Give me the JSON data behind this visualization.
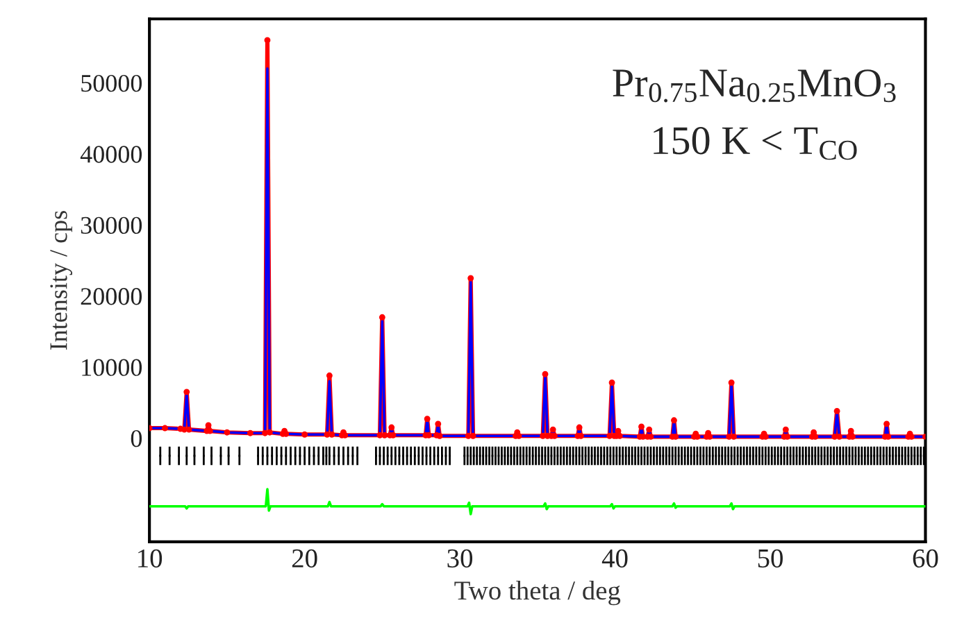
{
  "chart_data": {
    "type": "line",
    "xlabel": "Two theta / deg",
    "ylabel": "Intensity / cps",
    "annotations": [
      "Pr$_{0.75}$Na$_{0.25}$MnO$_{3}$",
      "150 K < T$_{CO}$"
    ],
    "xlim": [
      10,
      60
    ],
    "xticks": [
      10,
      20,
      30,
      40,
      50,
      60
    ],
    "ylim": [
      -14600,
      59000
    ],
    "yticks": [
      0,
      10000,
      20000,
      30000,
      40000,
      50000
    ],
    "grid": false,
    "legend": false,
    "series": [
      {
        "color": "#ff0000",
        "marker": "circle",
        "x": [
          10,
          11,
          12,
          12.25,
          12.4,
          12.55,
          13.7,
          13.8,
          13.9,
          15,
          16.5,
          17.45,
          17.6,
          17.75,
          18.6,
          18.7,
          18.8,
          20,
          21.45,
          21.6,
          21.75,
          22.4,
          22.5,
          22.6,
          24.85,
          25.0,
          25.15,
          25.5,
          25.6,
          25.7,
          27.8,
          27.9,
          28.0,
          28.5,
          28.6,
          28.7,
          30.55,
          30.7,
          30.85,
          33.6,
          33.7,
          33.8,
          35.35,
          35.5,
          35.65,
          35.9,
          36.0,
          36.1,
          37.6,
          37.7,
          37.8,
          39.65,
          39.8,
          39.95,
          40.1,
          40.2,
          40.3,
          41.6,
          41.7,
          41.8,
          42.1,
          42.2,
          42.3,
          43.7,
          43.8,
          43.9,
          45.1,
          45.2,
          45.3,
          45.9,
          46.0,
          46.1,
          47.35,
          47.5,
          47.65,
          49.5,
          49.6,
          49.7,
          50.9,
          51.0,
          51.1,
          52.7,
          52.8,
          52.9,
          54.15,
          54.3,
          54.45,
          55.1,
          55.2,
          55.3,
          57.4,
          57.5,
          57.6,
          58.9,
          59.0,
          59.1,
          60
        ],
        "values": [
          1400,
          1400,
          1300,
          1200,
          6500,
          1200,
          1000,
          1800,
          1000,
          800,
          700,
          700,
          56000,
          800,
          600,
          1000,
          600,
          500,
          500,
          8800,
          500,
          400,
          800,
          400,
          400,
          17000,
          400,
          400,
          1500,
          400,
          400,
          2700,
          400,
          400,
          2000,
          300,
          300,
          22500,
          300,
          300,
          800,
          300,
          300,
          9000,
          300,
          300,
          1200,
          300,
          300,
          1500,
          300,
          300,
          7800,
          300,
          300,
          1000,
          300,
          200,
          1600,
          200,
          200,
          1200,
          200,
          200,
          2500,
          200,
          200,
          600,
          200,
          200,
          700,
          200,
          200,
          7800,
          200,
          200,
          600,
          200,
          200,
          1200,
          200,
          200,
          800,
          200,
          200,
          3800,
          200,
          200,
          1000,
          200,
          200,
          2000,
          200,
          200,
          600,
          200,
          200
        ]
      },
      {
        "color": "#0000ff",
        "marker": "none",
        "x": [
          10,
          11,
          12,
          12.25,
          12.4,
          12.55,
          13.7,
          13.8,
          13.9,
          15,
          16.5,
          17.45,
          17.6,
          17.75,
          18.6,
          18.7,
          18.8,
          20,
          21.45,
          21.6,
          21.75,
          22.4,
          22.5,
          22.6,
          24.85,
          25.0,
          25.15,
          25.5,
          25.6,
          25.7,
          27.8,
          27.9,
          28.0,
          28.5,
          28.6,
          28.7,
          30.55,
          30.7,
          30.85,
          33.6,
          33.7,
          33.8,
          35.35,
          35.5,
          35.65,
          35.9,
          36.0,
          36.1,
          37.6,
          37.7,
          37.8,
          39.65,
          39.8,
          39.95,
          40.1,
          40.2,
          40.3,
          41.6,
          41.7,
          41.8,
          42.1,
          42.2,
          42.3,
          43.7,
          43.8,
          43.9,
          45.1,
          45.2,
          45.3,
          45.9,
          46.0,
          46.1,
          47.35,
          47.5,
          47.65,
          49.5,
          49.6,
          49.7,
          50.9,
          51.0,
          51.1,
          52.7,
          52.8,
          52.9,
          54.15,
          54.3,
          54.45,
          55.1,
          55.2,
          55.3,
          57.4,
          57.5,
          57.6,
          58.9,
          59.0,
          59.1,
          60
        ],
        "values": [
          1400,
          1400,
          1300,
          1200,
          6300,
          1200,
          1000,
          1700,
          1000,
          800,
          700,
          700,
          52000,
          800,
          600,
          1000,
          600,
          500,
          500,
          8000,
          500,
          400,
          800,
          400,
          400,
          16500,
          400,
          400,
          1500,
          400,
          400,
          2600,
          400,
          400,
          1900,
          300,
          300,
          22000,
          300,
          300,
          800,
          300,
          300,
          8800,
          300,
          300,
          1200,
          300,
          300,
          1500,
          300,
          300,
          7500,
          300,
          300,
          1000,
          300,
          200,
          1600,
          200,
          200,
          1200,
          200,
          200,
          2400,
          200,
          200,
          600,
          200,
          200,
          700,
          200,
          200,
          7600,
          200,
          200,
          600,
          200,
          200,
          1200,
          200,
          200,
          800,
          200,
          200,
          3600,
          200,
          200,
          1000,
          200,
          200,
          1900,
          200,
          200,
          600,
          200,
          200
        ]
      },
      {
        "type": "scatter",
        "color": "#000000",
        "marker": "square",
        "x": [
          10.7,
          11.3,
          11.9,
          12.4,
          12.9,
          13.5,
          14.0,
          14.6,
          15.1,
          15.8,
          17.0,
          17.3,
          17.6,
          17.9,
          18.2,
          18.5,
          18.8,
          19.1,
          19.4,
          19.7,
          20.0,
          20.3,
          20.6,
          20.9,
          21.2,
          21.4,
          21.6,
          21.9,
          22.2,
          22.5,
          22.8,
          23.1,
          23.4,
          24.6,
          24.85,
          25.1,
          25.35,
          25.6,
          25.85,
          26.1,
          26.35,
          26.6,
          26.85,
          27.1,
          27.35,
          27.6,
          27.85,
          28.1,
          28.35,
          28.6,
          28.85,
          29.1,
          29.35,
          30.3,
          30.5,
          30.7,
          30.9,
          31.1,
          31.3,
          31.5,
          31.7,
          31.9,
          32.1,
          32.3,
          32.5,
          32.7,
          32.9,
          33.1,
          33.3,
          33.5,
          33.7,
          33.9,
          34.1,
          34.3,
          34.5,
          34.7,
          34.9,
          35.1,
          35.3,
          35.5,
          35.7,
          35.9,
          36.1,
          36.3,
          36.5,
          36.7,
          36.9,
          37.1,
          37.3,
          37.5,
          37.7,
          37.9,
          38.1,
          38.3,
          38.5,
          38.7,
          38.9,
          39.1,
          39.3,
          39.5,
          39.7,
          39.9,
          40.1,
          40.3,
          40.5,
          40.7,
          40.9,
          41.1,
          41.3,
          41.5,
          41.7,
          41.9,
          42.1,
          42.3,
          42.5,
          42.7,
          42.9,
          43.1,
          43.3,
          43.5,
          43.7,
          43.9,
          44.1,
          44.3,
          44.5,
          44.7,
          44.9,
          45.1,
          45.3,
          45.5,
          45.7,
          45.9,
          46.1,
          46.3,
          46.5,
          46.7,
          46.9,
          47.1,
          47.3,
          47.5,
          47.7,
          47.9,
          48.1,
          48.3,
          48.5,
          48.7,
          48.9,
          49.1,
          49.3,
          49.5,
          49.7,
          49.9,
          50.1,
          50.3,
          50.5,
          50.7,
          50.9,
          51.1,
          51.3,
          51.5,
          51.7,
          51.9,
          52.1,
          52.3,
          52.5,
          52.7,
          52.9,
          53.1,
          53.3,
          53.5,
          53.7,
          53.9,
          54.1,
          54.3,
          54.5,
          54.7,
          54.9,
          55.1,
          55.3,
          55.5,
          55.7,
          55.9,
          56.1,
          56.3,
          56.5,
          56.7,
          56.9,
          57.1,
          57.3,
          57.5,
          57.7,
          57.9,
          58.1,
          58.3,
          58.5,
          58.7,
          58.9,
          59.1,
          59.3,
          59.5,
          59.7,
          59.9
        ],
        "values": [
          -2500,
          -2500,
          -2500,
          -2500,
          -2500,
          -2500,
          -2500,
          -2500,
          -2500,
          -2500,
          -2500,
          -2500,
          -2500,
          -2500,
          -2500,
          -2500,
          -2500,
          -2500,
          -2500,
          -2500,
          -2500,
          -2500,
          -2500,
          -2500,
          -2500,
          -2500,
          -2500,
          -2500,
          -2500,
          -2500,
          -2500,
          -2500,
          -2500,
          -2500,
          -2500,
          -2500,
          -2500,
          -2500,
          -2500,
          -2500,
          -2500,
          -2500,
          -2500,
          -2500,
          -2500,
          -2500,
          -2500,
          -2500,
          -2500,
          -2500,
          -2500,
          -2500,
          -2500,
          -2500,
          -2500,
          -2500,
          -2500,
          -2500,
          -2500,
          -2500,
          -2500,
          -2500,
          -2500,
          -2500,
          -2500,
          -2500,
          -2500,
          -2500,
          -2500,
          -2500,
          -2500,
          -2500,
          -2500,
          -2500,
          -2500,
          -2500,
          -2500,
          -2500,
          -2500,
          -2500,
          -2500,
          -2500,
          -2500,
          -2500,
          -2500,
          -2500,
          -2500,
          -2500,
          -2500,
          -2500,
          -2500,
          -2500,
          -2500,
          -2500,
          -2500,
          -2500,
          -2500,
          -2500,
          -2500,
          -2500,
          -2500,
          -2500,
          -2500,
          -2500,
          -2500,
          -2500,
          -2500,
          -2500,
          -2500,
          -2500,
          -2500,
          -2500,
          -2500,
          -2500,
          -2500,
          -2500,
          -2500,
          -2500,
          -2500,
          -2500,
          -2500,
          -2500,
          -2500,
          -2500,
          -2500,
          -2500,
          -2500,
          -2500,
          -2500,
          -2500,
          -2500,
          -2500,
          -2500,
          -2500,
          -2500,
          -2500,
          -2500,
          -2500,
          -2500,
          -2500,
          -2500,
          -2500,
          -2500,
          -2500,
          -2500,
          -2500,
          -2500,
          -2500,
          -2500,
          -2500,
          -2500,
          -2500,
          -2500,
          -2500,
          -2500,
          -2500,
          -2500,
          -2500,
          -2500,
          -2500,
          -2500,
          -2500,
          -2500,
          -2500,
          -2500,
          -2500,
          -2500,
          -2500,
          -2500,
          -2500,
          -2500,
          -2500,
          -2500,
          -2500,
          -2500,
          -2500,
          -2500,
          -2500,
          -2500,
          -2500,
          -2500,
          -2500,
          -2500,
          -2500,
          -2500,
          -2500,
          -2500,
          -2500,
          -2500,
          -2500,
          -2500,
          -2500,
          -2500,
          -2500,
          -2500,
          -2500,
          -2500,
          -2500,
          -2500,
          -2500,
          -2500,
          -2500
        ],
        "errors": [
          1300,
          1300,
          1300,
          1300,
          1300,
          1300,
          1300,
          1300,
          1300,
          1300,
          1300,
          1300,
          1300,
          1300,
          1300,
          1300,
          1300,
          1300,
          1300,
          1300,
          1300,
          1300,
          1300,
          1300,
          1300,
          1300,
          1300,
          1300,
          1300,
          1300,
          1300,
          1300,
          1300,
          1300,
          1300,
          1300,
          1300,
          1300,
          1300,
          1300,
          1300,
          1300,
          1300,
          1300,
          1300,
          1300,
          1300,
          1300,
          1300,
          1300,
          1300,
          1300,
          1300,
          1300,
          1300,
          1300,
          1300,
          1300,
          1300,
          1300,
          1300,
          1300,
          1300,
          1300,
          1300,
          1300,
          1300,
          1300,
          1300,
          1300,
          1300,
          1300,
          1300,
          1300,
          1300,
          1300,
          1300,
          1300,
          1300,
          1300,
          1300,
          1300,
          1300,
          1300,
          1300,
          1300,
          1300,
          1300,
          1300,
          1300,
          1300,
          1300,
          1300,
          1300,
          1300,
          1300,
          1300,
          1300,
          1300,
          1300,
          1300,
          1300,
          1300,
          1300,
          1300,
          1300,
          1300,
          1300,
          1300,
          1300,
          1300,
          1300,
          1300,
          1300,
          1300,
          1300,
          1300,
          1300,
          1300,
          1300,
          1300,
          1300,
          1300,
          1300,
          1300,
          1300,
          1300,
          1300,
          1300,
          1300,
          1300,
          1300,
          1300,
          1300,
          1300,
          1300,
          1300,
          1300,
          1300,
          1300,
          1300,
          1300,
          1300,
          1300,
          1300,
          1300,
          1300,
          1300,
          1300,
          1300,
          1300,
          1300,
          1300,
          1300,
          1300,
          1300,
          1300,
          1300,
          1300,
          1300,
          1300,
          1300,
          1300,
          1300,
          1300,
          1300,
          1300,
          1300,
          1300,
          1300,
          1300,
          1300,
          1300,
          1300,
          1300,
          1300,
          1300,
          1300,
          1300,
          1300,
          1300,
          1300,
          1300,
          1300,
          1300,
          1300,
          1300,
          1300,
          1300,
          1300,
          1300,
          1300,
          1300,
          1300,
          1300,
          1300,
          1300,
          1300,
          1300,
          1300,
          1300,
          1300
        ]
      },
      {
        "color": "#00ff00",
        "marker": "none",
        "x": [
          10,
          12.3,
          12.4,
          12.5,
          17.5,
          17.6,
          17.7,
          17.8,
          21.5,
          21.6,
          21.7,
          24.9,
          25.0,
          25.1,
          30.5,
          30.6,
          30.7,
          30.8,
          35.4,
          35.5,
          35.6,
          35.7,
          39.7,
          39.8,
          39.9,
          40,
          43.7,
          43.8,
          43.9,
          44,
          47.4,
          47.5,
          47.6,
          47.7,
          60
        ],
        "values": [
          -9600,
          -9600,
          -9900,
          -9600,
          -9600,
          -7200,
          -10200,
          -9600,
          -9600,
          -9000,
          -9600,
          -9600,
          -9300,
          -9600,
          -9600,
          -9100,
          -10700,
          -9600,
          -9600,
          -9200,
          -10000,
          -9600,
          -9600,
          -9300,
          -9900,
          -9600,
          -9600,
          -9200,
          -9800,
          -9600,
          -9600,
          -9200,
          -10000,
          -9600,
          -9600
        ]
      }
    ]
  }
}
